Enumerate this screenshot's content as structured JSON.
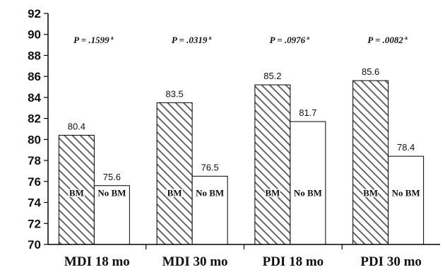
{
  "chart_data": {
    "type": "bar",
    "categories": [
      "MDI 18 mo",
      "MDI 30 mo",
      "PDI 18 mo",
      "PDI 30 mo"
    ],
    "series": [
      {
        "name": "BM",
        "values": [
          80.4,
          83.5,
          85.2,
          85.6
        ],
        "pattern": "hatched"
      },
      {
        "name": "No BM",
        "values": [
          75.6,
          76.5,
          81.7,
          78.4
        ],
        "pattern": "white"
      }
    ],
    "annotations": [
      "P = .1599",
      "P = .0319",
      "P = .0976",
      "P = .0082"
    ],
    "annotation_superscript": "a",
    "ylim": [
      70,
      92
    ],
    "yticks": [
      70,
      72,
      74,
      76,
      78,
      80,
      82,
      84,
      86,
      88,
      90,
      92
    ],
    "colors": {
      "axis": "#000000",
      "bar_stroke": "#000000",
      "hatch": "#555555",
      "fill": "#ffffff"
    }
  }
}
